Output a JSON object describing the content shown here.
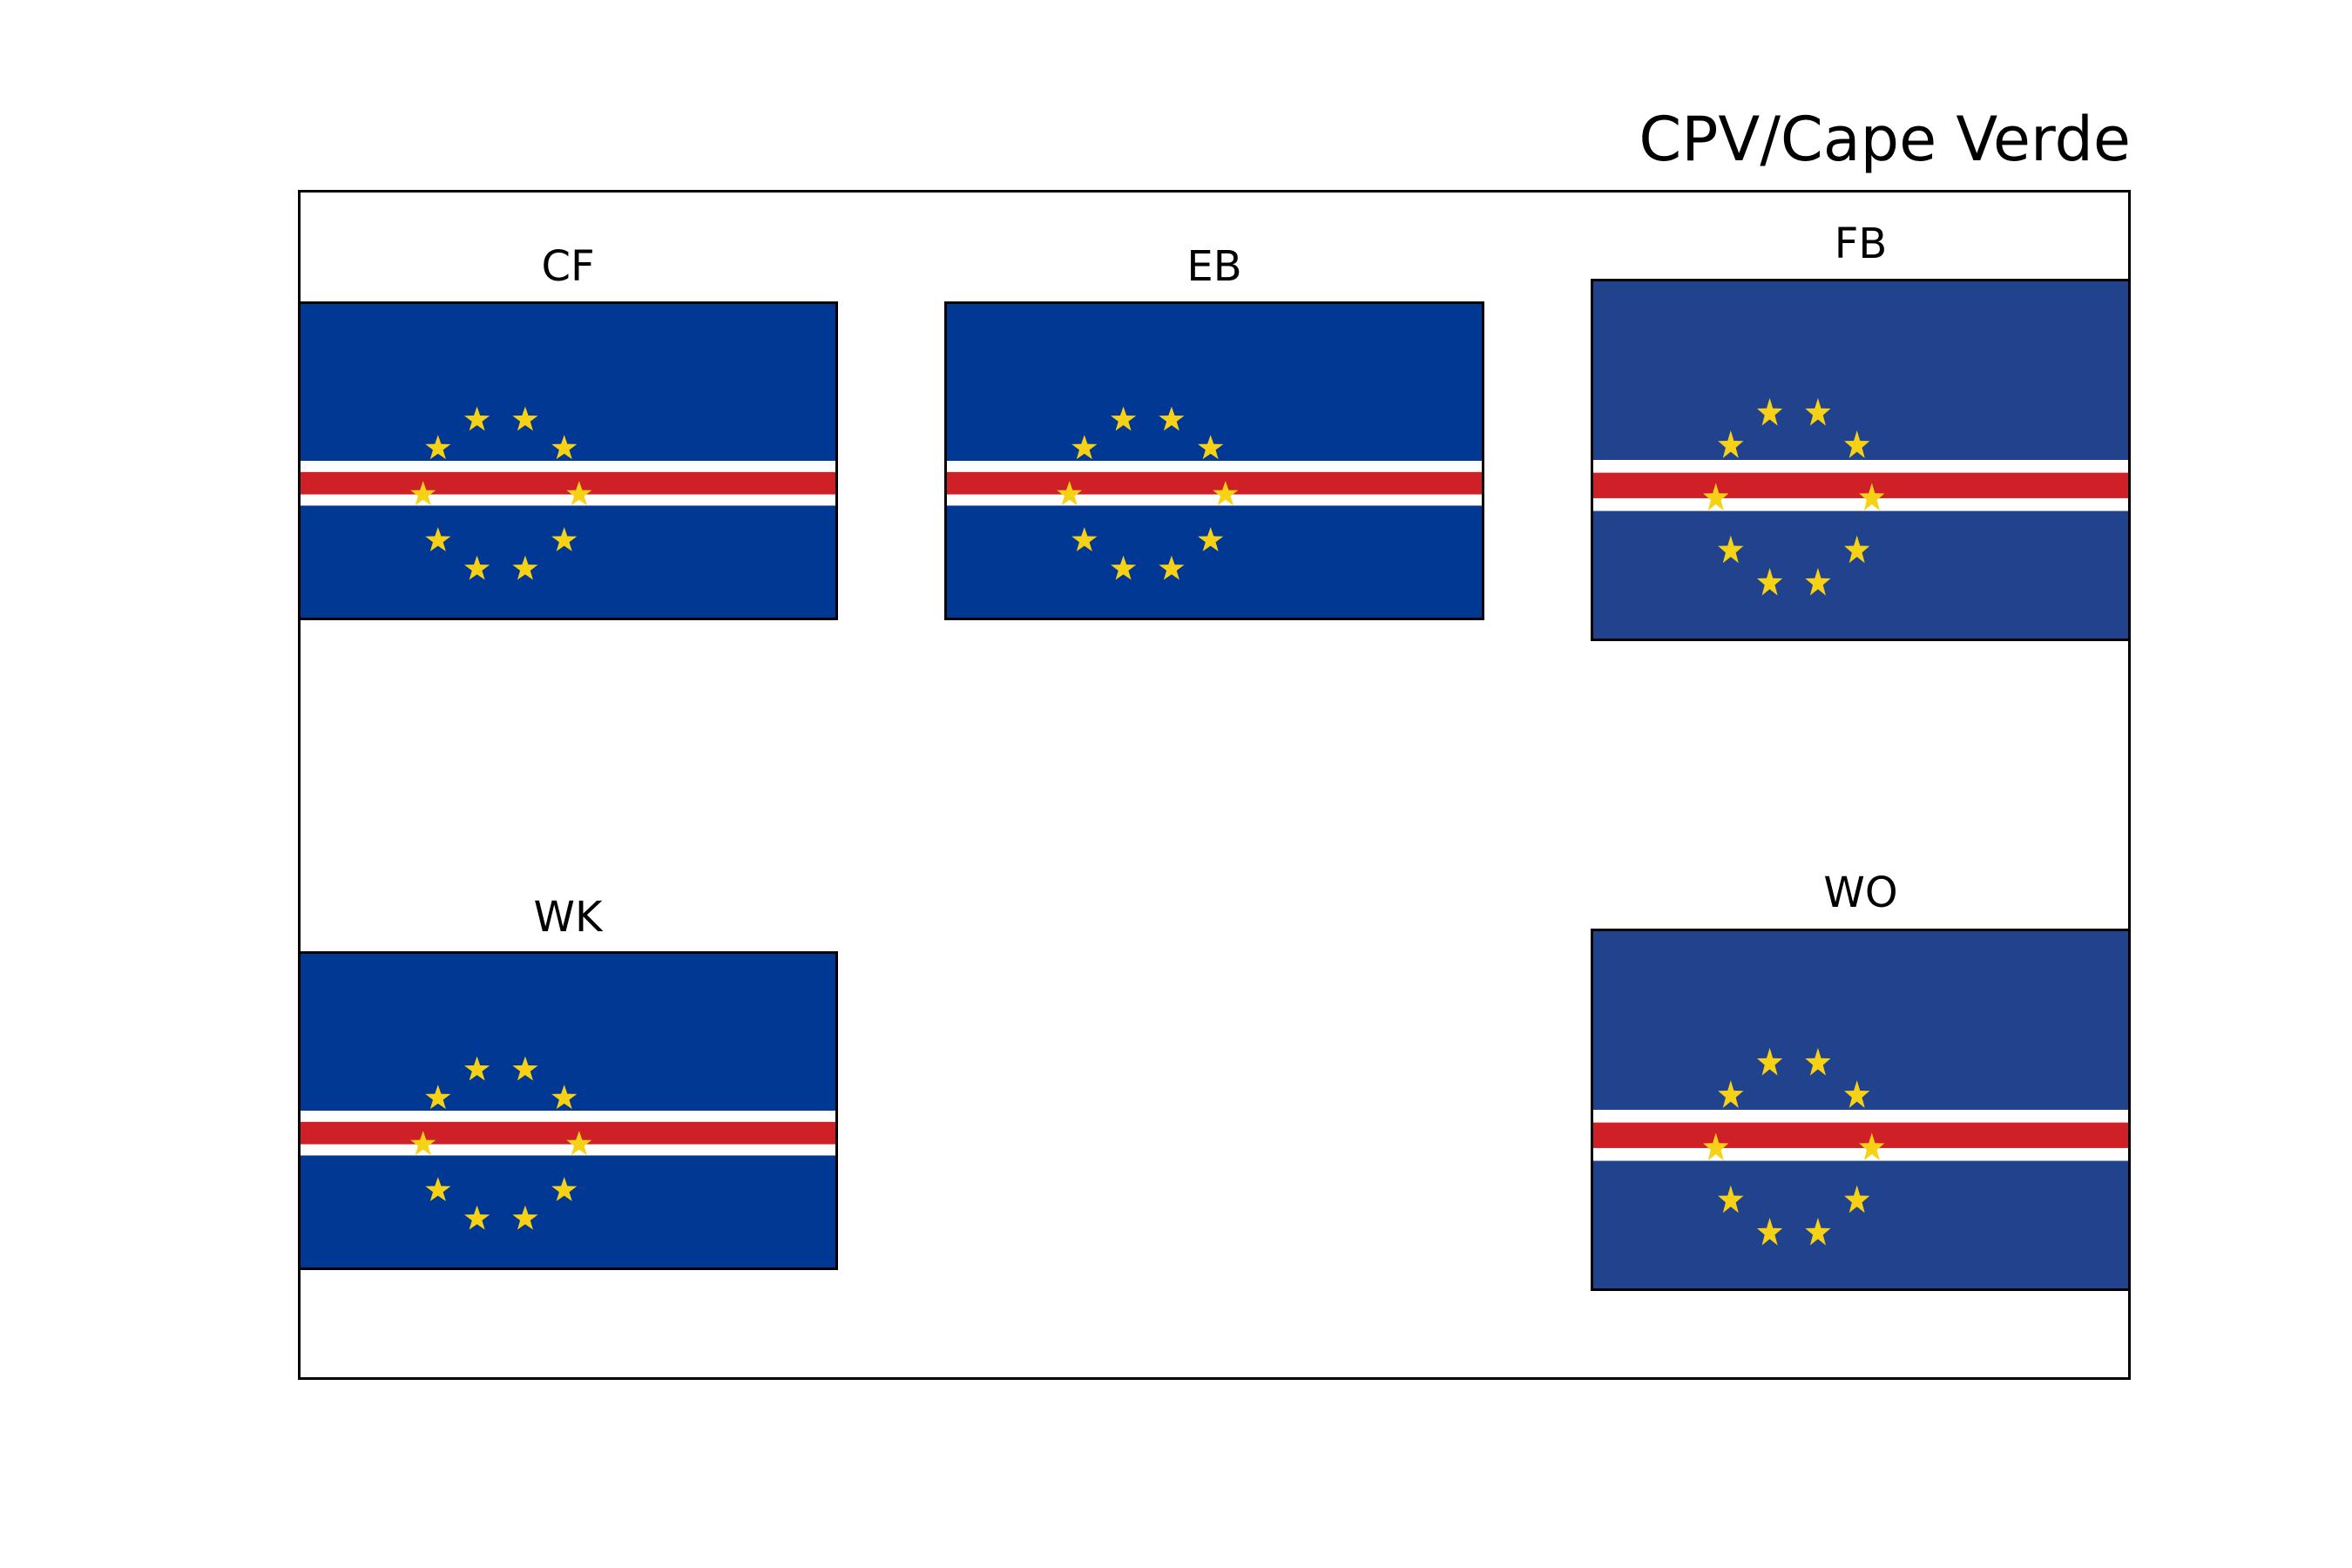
{
  "title": "CPV/Cape Verde",
  "flags": [
    {
      "label": "CF",
      "style": "dark"
    },
    {
      "label": "EB",
      "style": "dark"
    },
    {
      "label": "FB",
      "style": "muted"
    },
    {
      "label": "WK",
      "style": "dark"
    },
    {
      "label": "WO",
      "style": "muted"
    }
  ],
  "colors": {
    "blue_dark": "#003893",
    "blue_muted": "#21428C",
    "white": "#FFFFFF",
    "red": "#CF2027",
    "star": "#F7D116"
  },
  "icons": {
    "flag": "cape-verde-flag-icon",
    "star": "star-icon"
  }
}
